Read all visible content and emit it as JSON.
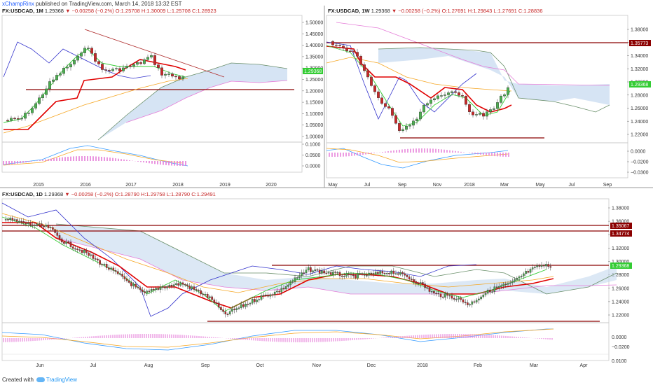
{
  "header": {
    "author": "xChampRinx",
    "text": "published on TradingView.com, March 14, 2018 13:32 EST"
  },
  "panels": {
    "monthly": {
      "symbol": "FX:USDCAD, 1M",
      "last": "1.29368",
      "change": "▼ −0.00258 (−0.2%)",
      "open": "O:1.25708",
      "high": "H:1.30009",
      "low": "L:1.25708",
      "close": "C:1.28923",
      "price_axis": [
        "1.50000",
        "1.45000",
        "1.40000",
        "1.35000",
        "1.30000",
        "1.25000",
        "1.20000",
        "1.15000",
        "1.10000",
        "1.05000",
        "1.00000"
      ],
      "osc_axis": [
        "0.1000",
        "0.0500",
        "0.0000"
      ],
      "date_axis": [
        "2015",
        "2016",
        "2017",
        "2018",
        "2019",
        "2020"
      ],
      "last_tag": "1.29368"
    },
    "weekly": {
      "symbol": "FX:USDCAD, 1W",
      "last": "1.29368",
      "change": "▼ −0.00258 (−0.2%)",
      "open": "O:1.27691",
      "high": "H:1.29843",
      "low": "L:1.27691",
      "close": "C:1.28836",
      "price_axis": [
        "1.38000",
        "1.36000",
        "1.34000",
        "1.32000",
        "1.30000",
        "1.28000",
        "1.26000",
        "1.24000",
        "1.22000"
      ],
      "osc_axis": [
        "0.0000",
        "−0.0200",
        "−0.0300"
      ],
      "date_axis": [
        "May",
        "Jul",
        "Sep",
        "Nov",
        "2018",
        "Mar",
        "May",
        "Jul",
        "Sep"
      ],
      "resistance_tag": "1.35773",
      "last_tag": "1.29368"
    },
    "daily": {
      "symbol": "FX:USDCAD, 1D",
      "last": "1.29368",
      "change": "▼ −0.00258 (−0.2%)",
      "open": "O:1.28790",
      "high": "H:1.29758",
      "low": "L:1.28790",
      "close": "C:1.29491",
      "price_axis": [
        "1.38000",
        "1.36000",
        "1.34000",
        "1.32000",
        "1.30000",
        "1.28000",
        "1.26000",
        "1.24000",
        "1.22000"
      ],
      "osc_axis": [
        "0.0000",
        "−0.0200",
        "0.0100"
      ],
      "date_axis": [
        "Jun",
        "Jul",
        "Aug",
        "Sep",
        "Oct",
        "Nov",
        "Dec",
        "2018",
        "Feb",
        "Mar",
        "Apr"
      ],
      "resistance_tag_1": "1.35067",
      "resistance_tag_2": "1.34774",
      "last_tag": "1.29368"
    }
  },
  "footer": {
    "created_with": "Created with",
    "brand": "TradingView"
  },
  "colors": {
    "bull": "#4caf50",
    "bear": "#c62828",
    "kijun": "#e00000",
    "tenkan": "#33cc33",
    "ma_orange": "#f5a623",
    "cloud": "#c5d9ef",
    "span_b": "#2e7d32",
    "span_a": "#e57cd8",
    "chikou": "#3333cc",
    "support": "#8b0000"
  }
}
